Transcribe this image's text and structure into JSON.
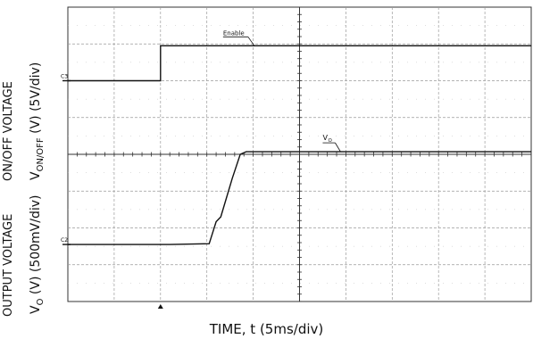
{
  "chart_data": {
    "type": "line",
    "subtype": "oscilloscope-capture",
    "divisions": {
      "x": 10,
      "y": 8
    },
    "x_scale": {
      "value": 5,
      "unit": "ms/div"
    },
    "xlabel": "TIME, t (5ms/div)",
    "channels": [
      {
        "id": "C3",
        "marker_label": "C3",
        "trace_label": "Enable",
        "ylabel_cut": "ON/OFF VOLTAGE",
        "ylabel_main": "V",
        "ylabel_sub": "ON/OFF",
        "ylabel_rest": " (V) (5V/div)",
        "y_scale": {
          "value": 5,
          "unit": "V/div"
        },
        "baseline_div": 6,
        "points_div": [
          [
            0,
            0
          ],
          [
            2.0,
            0
          ],
          [
            2.0,
            0.95
          ],
          [
            10,
            0.95
          ]
        ]
      },
      {
        "id": "C2",
        "marker_label": "C2",
        "trace_label": "Vo",
        "trace_label_main": "V",
        "trace_label_sub": "O",
        "ylabel_cut": "OUTPUT VOLTAGE",
        "ylabel_main": "V",
        "ylabel_sub": "O",
        "ylabel_rest": " (V) (500mV/div)",
        "y_scale": {
          "value": 500,
          "unit": "mV/div"
        },
        "baseline_div": 1.55,
        "points_div": [
          [
            0,
            0
          ],
          [
            2.2,
            0
          ],
          [
            3.05,
            0.02
          ],
          [
            3.2,
            0.62
          ],
          [
            3.3,
            0.75
          ],
          [
            3.55,
            1.8
          ],
          [
            3.72,
            2.45
          ],
          [
            3.85,
            2.52
          ],
          [
            10,
            2.52
          ]
        ]
      }
    ],
    "trigger_div": 2.0
  }
}
